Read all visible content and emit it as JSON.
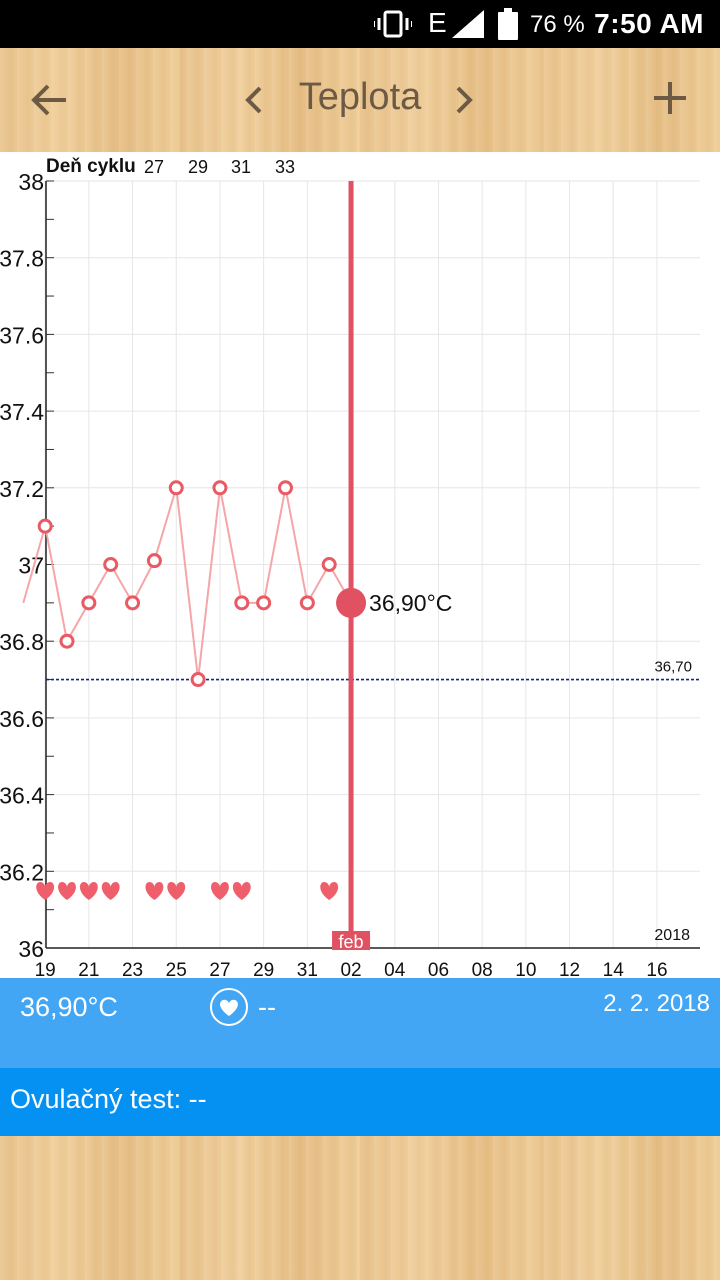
{
  "status_bar": {
    "network_type": "E",
    "battery_percent": "76 %",
    "time": "7:50 AM",
    "icons": [
      "vibrate-icon",
      "signal-icon",
      "battery-icon"
    ]
  },
  "app_bar": {
    "title": "Teplota",
    "icons": [
      "back-arrow-icon",
      "chevron-left-icon",
      "chevron-right-icon",
      "plus-icon"
    ]
  },
  "chart_data": {
    "type": "line",
    "corner_label": "Deň cyklu",
    "cycle_day_labels": [
      "27",
      "29",
      "31",
      "33"
    ],
    "x_tick_labels": [
      "19",
      "21",
      "23",
      "25",
      "27",
      "29",
      "31",
      "02",
      "04",
      "06",
      "08",
      "10",
      "12",
      "14",
      "16"
    ],
    "y_tick_labels": [
      "38",
      "37.8",
      "37.6",
      "37.4",
      "37.2",
      "37",
      "36.8",
      "36.6",
      "36.4",
      "36.2",
      "36"
    ],
    "ylim": [
      36,
      38
    ],
    "month_label": "feb",
    "year_label": "2018",
    "coverline_label": "36,70",
    "coverline_value": 36.7,
    "selected_label": "36,90°C",
    "selected_day": 2,
    "selected_value": 36.9,
    "days_from_jan18": [
      0.0,
      1.0,
      2.0,
      3.0,
      4.0,
      5.0,
      6.0,
      7.0,
      8.0,
      9.0,
      10.0,
      11.0,
      12.0,
      13.0,
      14.0,
      15.0
    ],
    "x": [
      "18.1.",
      "19.1.",
      "20.1.",
      "21.1.",
      "22.1.",
      "23.1.",
      "24.1.",
      "25.1.",
      "26.1.",
      "27.1.",
      "28.1.",
      "29.1.",
      "30.1.",
      "31.1.",
      "1.2.",
      "2.2."
    ],
    "series": [
      {
        "values": [
          36.9,
          37.1,
          36.8,
          36.9,
          37.0,
          36.9,
          37.01,
          37.2,
          36.7,
          37.2,
          36.9,
          36.9,
          37.2,
          36.9,
          37.0,
          36.9
        ]
      }
    ],
    "intercourse_days": [
      "19.1.",
      "20.1.",
      "21.1.",
      "22.1.",
      "24.1.",
      "25.1.",
      "27.1.",
      "28.1.",
      "1.2."
    ],
    "colors": {
      "line": "#f4a6a9",
      "marker": "#e85a64",
      "selected": "#e05262",
      "coverline": "#1a237e"
    }
  },
  "info_panel": {
    "temperature": "36,90°C",
    "sex_value": "--",
    "date": "2. 2. 2018",
    "icon": "heart-circle-icon"
  },
  "ovulation_panel": {
    "text": "Ovulačný test: --"
  }
}
